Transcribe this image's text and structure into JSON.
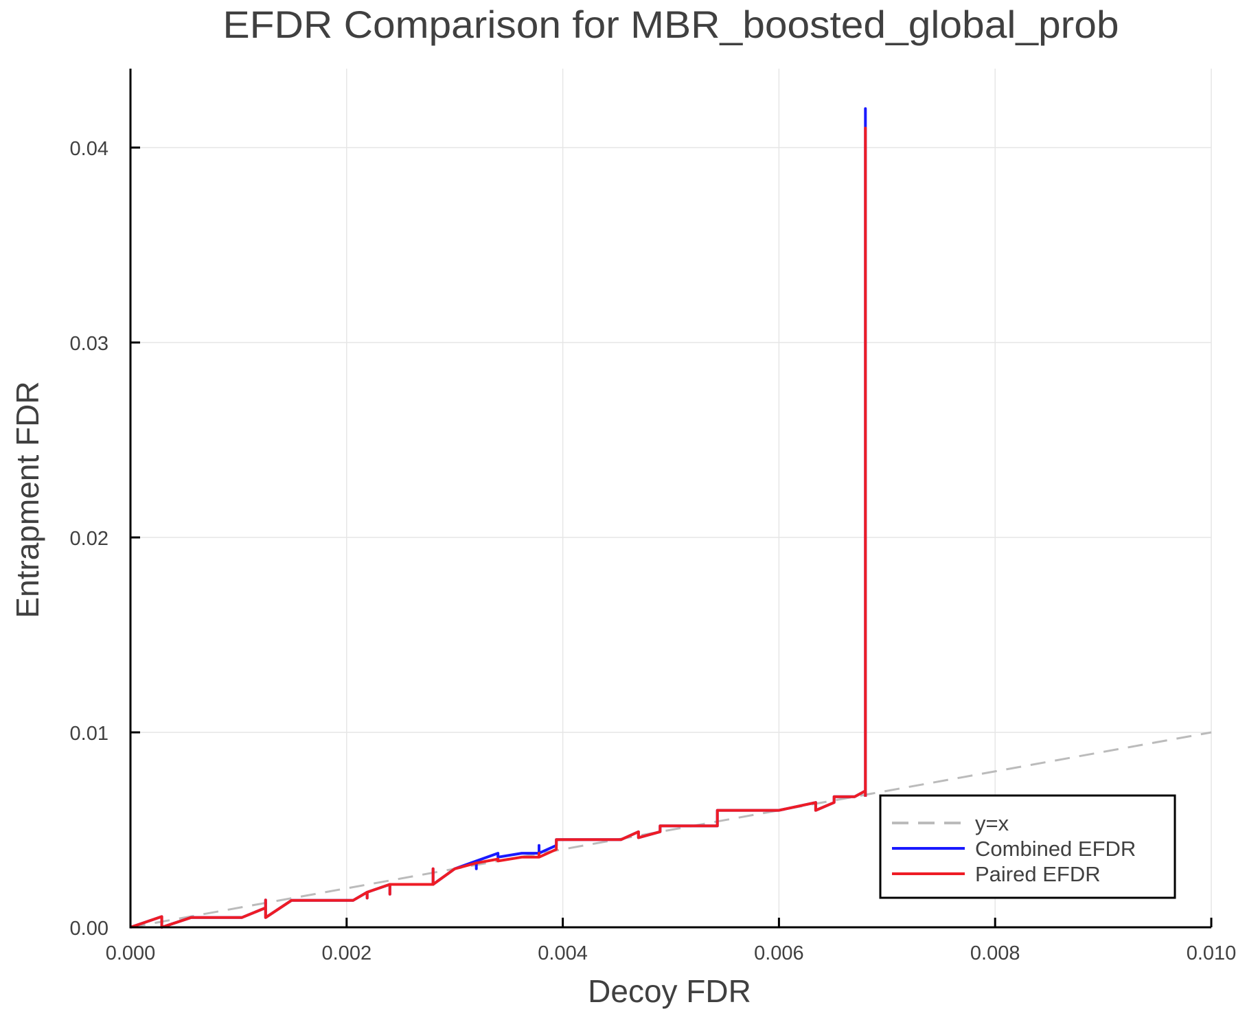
{
  "chart_data": {
    "type": "line",
    "title": "EFDR Comparison for MBR_boosted_global_prob",
    "xlabel": "Decoy FDR",
    "ylabel": "Entrapment FDR",
    "xlim": [
      0.0,
      0.01
    ],
    "ylim": [
      0.0,
      0.044
    ],
    "grid": true,
    "legend_position": "bottom-right",
    "x_ticks": [
      "0.000",
      "0.002",
      "0.004",
      "0.006",
      "0.008",
      "0.010"
    ],
    "x_tick_values": [
      0.0,
      0.002,
      0.004,
      0.006,
      0.008,
      0.01
    ],
    "y_ticks": [
      "0.00",
      "0.01",
      "0.02",
      "0.03",
      "0.04"
    ],
    "y_tick_values": [
      0.0,
      0.01,
      0.02,
      0.03,
      0.04
    ],
    "series": [
      {
        "name": "y=x",
        "color": "#bbbbbb",
        "style": "dashed",
        "x": [
          0.0,
          0.01
        ],
        "y": [
          0.0,
          0.01
        ]
      },
      {
        "name": "Combined EFDR",
        "color": "#1a1aff",
        "style": "solid",
        "x": [
          0.0,
          0.00029,
          0.00029,
          0.00056,
          0.00103,
          0.00125,
          0.00125,
          0.00125,
          0.00149,
          0.00206,
          0.00219,
          0.00219,
          0.00219,
          0.0024,
          0.0024,
          0.0024,
          0.0028,
          0.0028,
          0.0028,
          0.003,
          0.0032,
          0.0032,
          0.0032,
          0.0034,
          0.0034,
          0.00362,
          0.00378,
          0.00378,
          0.00378,
          0.00394,
          0.00394,
          0.00454,
          0.0047,
          0.0047,
          0.0049,
          0.0049,
          0.00543,
          0.00543,
          0.006,
          0.00634,
          0.00634,
          0.00651,
          0.00651,
          0.0067,
          0.0068,
          0.0068,
          0.0068
        ],
        "y": [
          0.0,
          0.00055,
          0.0,
          0.0005,
          0.0005,
          0.001,
          0.0014,
          0.0005,
          0.00138,
          0.00138,
          0.0018,
          0.0015,
          0.0018,
          0.0022,
          0.0017,
          0.0022,
          0.0022,
          0.003,
          0.0022,
          0.003,
          0.0034,
          0.003,
          0.0034,
          0.0038,
          0.0036,
          0.0038,
          0.0038,
          0.0042,
          0.0038,
          0.0042,
          0.0045,
          0.0045,
          0.0049,
          0.0046,
          0.0049,
          0.0052,
          0.0052,
          0.006,
          0.006,
          0.0064,
          0.006,
          0.0064,
          0.0067,
          0.0067,
          0.007,
          0.042,
          0.0067
        ]
      },
      {
        "name": "Paired EFDR",
        "color": "#ee1c25",
        "style": "solid",
        "x": [
          0.0,
          0.00029,
          0.00029,
          0.00056,
          0.00103,
          0.00125,
          0.00125,
          0.00125,
          0.00149,
          0.00206,
          0.00219,
          0.00219,
          0.00219,
          0.0024,
          0.0024,
          0.0024,
          0.0028,
          0.0028,
          0.0028,
          0.003,
          0.0032,
          0.0034,
          0.0034,
          0.00362,
          0.00378,
          0.00378,
          0.00378,
          0.00394,
          0.00394,
          0.00454,
          0.0047,
          0.0047,
          0.0049,
          0.0049,
          0.00543,
          0.00543,
          0.006,
          0.00634,
          0.00634,
          0.00651,
          0.00651,
          0.0067,
          0.0068,
          0.0068,
          0.0068
        ],
        "y": [
          0.0,
          0.00055,
          0.0,
          0.0005,
          0.0005,
          0.001,
          0.0014,
          0.0005,
          0.00138,
          0.00138,
          0.0018,
          0.0015,
          0.0018,
          0.0022,
          0.0017,
          0.0022,
          0.0022,
          0.003,
          0.0022,
          0.003,
          0.0033,
          0.0035,
          0.0034,
          0.0036,
          0.0036,
          0.0038,
          0.0036,
          0.004,
          0.0045,
          0.0045,
          0.0049,
          0.0046,
          0.0049,
          0.0052,
          0.0052,
          0.006,
          0.006,
          0.0064,
          0.006,
          0.0064,
          0.0067,
          0.0067,
          0.007,
          0.041,
          0.0067
        ]
      }
    ],
    "annotations": []
  },
  "legend": {
    "items": [
      {
        "label": "y=x",
        "color": "#bbbbbb",
        "style": "dashed"
      },
      {
        "label": "Combined EFDR",
        "color": "#1a1aff",
        "style": "solid"
      },
      {
        "label": "Paired EFDR",
        "color": "#ee1c25",
        "style": "solid"
      }
    ]
  }
}
